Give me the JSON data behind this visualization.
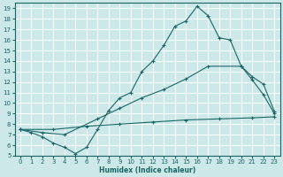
{
  "xlabel": "Humidex (Indice chaleur)",
  "xlim": [
    -0.5,
    23.5
  ],
  "ylim": [
    5,
    19.5
  ],
  "xticks": [
    0,
    1,
    2,
    3,
    4,
    5,
    6,
    7,
    8,
    9,
    10,
    11,
    12,
    13,
    14,
    15,
    16,
    17,
    18,
    19,
    20,
    21,
    22,
    23
  ],
  "yticks": [
    5,
    6,
    7,
    8,
    9,
    10,
    11,
    12,
    13,
    14,
    15,
    16,
    17,
    18,
    19
  ],
  "bg_color": "#cce8e8",
  "line_color": "#1a6666",
  "grid_color": "#aacccc",
  "curve1_x": [
    0,
    1,
    2,
    3,
    4,
    5,
    6,
    7,
    8,
    9,
    10,
    11,
    12,
    13,
    14,
    15,
    16,
    17,
    18,
    19,
    20,
    21,
    22,
    23
  ],
  "curve1_y": [
    7.5,
    7.2,
    6.8,
    6.2,
    5.8,
    5.2,
    5.8,
    7.5,
    9.3,
    10.5,
    11.0,
    13.0,
    14.0,
    15.5,
    17.3,
    17.8,
    19.2,
    18.3,
    16.2,
    16.0,
    13.5,
    12.2,
    10.8,
    9.0
  ],
  "curve2_x": [
    0,
    2,
    4,
    7,
    9,
    11,
    13,
    15,
    17,
    20,
    21,
    22,
    23
  ],
  "curve2_y": [
    7.5,
    7.2,
    7.0,
    8.5,
    9.5,
    10.5,
    11.3,
    12.3,
    13.5,
    13.5,
    12.5,
    11.8,
    9.2
  ],
  "curve3_x": [
    0,
    3,
    6,
    9,
    12,
    15,
    18,
    21,
    23
  ],
  "curve3_y": [
    7.5,
    7.5,
    7.8,
    8.0,
    8.2,
    8.4,
    8.5,
    8.6,
    8.7
  ]
}
